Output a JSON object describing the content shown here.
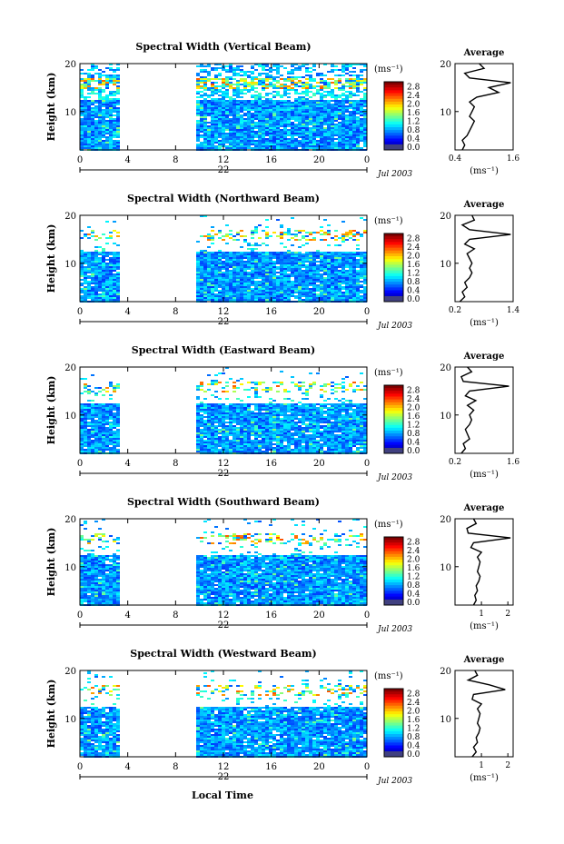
{
  "figure": {
    "bottom_label": "Local Time",
    "colorbar_unit": "(ms⁻¹)",
    "average_title": "Average",
    "date_text": "Jul 2003",
    "day_label": "22",
    "height_axis_label": "Height (km)",
    "average_unit": "(ms⁻¹)",
    "colors": {
      "jet": [
        "#00008f",
        "#0000ff",
        "#0080ff",
        "#00ffff",
        "#80ff80",
        "#ffff00",
        "#ff8000",
        "#ff0000",
        "#800000"
      ],
      "colorbar_bottom": "#404080"
    }
  },
  "chart_data": [
    {
      "type": "heatmap",
      "title": "Spectral Width (Vertical Beam)",
      "ylabel": "Height (km)",
      "x_ticks": [
        "0",
        "4",
        "8",
        "12",
        "16",
        "20",
        "0"
      ],
      "y_ticks": [
        "20",
        "10"
      ],
      "xlim_hours": [
        0,
        24
      ],
      "ylim_km": [
        2,
        20
      ],
      "data_gap_hours": [
        3.2,
        9.6
      ],
      "colorbar_ticks": [
        "2.8",
        "2.4",
        "2.0",
        "1.6",
        "1.2",
        "0.8",
        "0.4",
        "0.0"
      ],
      "colorbar_range": [
        0,
        3
      ],
      "average": {
        "title": "Average",
        "xlabel": "(ms⁻¹)",
        "x_ticks": [
          "0.4",
          "1.6"
        ],
        "xlim": [
          0.4,
          1.6
        ],
        "profile_height_km": [
          2,
          3,
          4,
          5,
          6,
          7,
          8,
          9,
          10,
          11,
          12,
          13,
          14,
          15,
          16,
          17,
          18,
          19,
          20
        ],
        "profile_width": [
          0.55,
          0.6,
          0.55,
          0.65,
          0.7,
          0.75,
          0.8,
          0.7,
          0.75,
          0.8,
          0.7,
          0.85,
          1.3,
          1.1,
          1.55,
          0.7,
          0.6,
          1.0,
          0.9
        ]
      }
    },
    {
      "type": "heatmap",
      "title": "Spectral Width (Northward Beam)",
      "ylabel": "Height (km)",
      "x_ticks": [
        "0",
        "4",
        "8",
        "12",
        "16",
        "20",
        "0"
      ],
      "y_ticks": [
        "20",
        "10"
      ],
      "xlim_hours": [
        0,
        24
      ],
      "ylim_km": [
        2,
        20
      ],
      "data_gap_hours": [
        3.2,
        9.6
      ],
      "colorbar_ticks": [
        "2.8",
        "2.4",
        "2.0",
        "1.6",
        "1.2",
        "0.8",
        "0.4",
        "0.0"
      ],
      "colorbar_range": [
        0,
        3
      ],
      "average": {
        "title": "Average",
        "xlabel": "(ms⁻¹)",
        "x_ticks": [
          "0.2",
          "1.4"
        ],
        "xlim": [
          0.2,
          1.4
        ],
        "profile_height_km": [
          2,
          3,
          4,
          5,
          6,
          7,
          8,
          9,
          10,
          11,
          12,
          13,
          14,
          15,
          16,
          17,
          18,
          19,
          20
        ],
        "profile_width": [
          0.3,
          0.4,
          0.35,
          0.45,
          0.4,
          0.5,
          0.55,
          0.5,
          0.55,
          0.5,
          0.45,
          0.6,
          0.4,
          0.5,
          1.35,
          0.5,
          0.35,
          0.6,
          0.55
        ]
      }
    },
    {
      "type": "heatmap",
      "title": "Spectral Width (Eastward Beam)",
      "ylabel": "Height (km)",
      "x_ticks": [
        "0",
        "4",
        "8",
        "12",
        "16",
        "20",
        "0"
      ],
      "y_ticks": [
        "20",
        "10"
      ],
      "xlim_hours": [
        0,
        24
      ],
      "ylim_km": [
        2,
        20
      ],
      "data_gap_hours": [
        3.2,
        9.6
      ],
      "colorbar_ticks": [
        "2.8",
        "2.4",
        "2.0",
        "1.6",
        "1.2",
        "0.8",
        "0.4",
        "0.0"
      ],
      "colorbar_range": [
        0,
        3
      ],
      "average": {
        "title": "Average",
        "xlabel": "(ms⁻¹)",
        "x_ticks": [
          "0.2",
          "1.6"
        ],
        "xlim": [
          0.2,
          1.6
        ],
        "profile_height_km": [
          2,
          3,
          4,
          5,
          6,
          7,
          8,
          9,
          10,
          11,
          12,
          13,
          14,
          15,
          16,
          17,
          18,
          19,
          20
        ],
        "profile_width": [
          0.35,
          0.45,
          0.4,
          0.55,
          0.5,
          0.45,
          0.55,
          0.6,
          0.55,
          0.65,
          0.5,
          0.7,
          0.45,
          0.55,
          1.5,
          0.4,
          0.35,
          0.6,
          0.5
        ]
      }
    },
    {
      "type": "heatmap",
      "title": "Spectral Width (Southward Beam)",
      "ylabel": "Height (km)",
      "x_ticks": [
        "0",
        "4",
        "8",
        "12",
        "16",
        "20",
        "0"
      ],
      "y_ticks": [
        "20",
        "10"
      ],
      "xlim_hours": [
        0,
        24
      ],
      "ylim_km": [
        2,
        20
      ],
      "data_gap_hours": [
        3.2,
        9.6
      ],
      "colorbar_ticks": [
        "2.8",
        "2.4",
        "2.0",
        "1.6",
        "1.2",
        "0.8",
        "0.4",
        "0.0"
      ],
      "colorbar_range": [
        0,
        3
      ],
      "average": {
        "title": "Average",
        "xlabel": "(ms⁻¹)",
        "x_ticks": [
          "1",
          "2"
        ],
        "xlim": [
          0,
          2.2
        ],
        "profile_height_km": [
          2,
          3,
          4,
          5,
          6,
          7,
          8,
          9,
          10,
          11,
          12,
          13,
          14,
          15,
          16,
          17,
          18,
          19,
          20
        ],
        "profile_width": [
          0.7,
          0.8,
          0.75,
          0.85,
          0.8,
          0.9,
          0.95,
          0.85,
          0.9,
          0.95,
          0.85,
          1.0,
          0.6,
          0.7,
          2.1,
          0.5,
          0.45,
          0.8,
          0.7
        ]
      }
    },
    {
      "type": "heatmap",
      "title": "Spectral Width (Westward Beam)",
      "ylabel": "Height (km)",
      "x_ticks": [
        "0",
        "4",
        "8",
        "12",
        "16",
        "20",
        "0"
      ],
      "y_ticks": [
        "20",
        "10"
      ],
      "xlim_hours": [
        0,
        24
      ],
      "ylim_km": [
        2,
        20
      ],
      "data_gap_hours": [
        3.2,
        9.6
      ],
      "colorbar_ticks": [
        "2.8",
        "2.4",
        "2.0",
        "1.6",
        "1.2",
        "0.8",
        "0.4",
        "0.0"
      ],
      "colorbar_range": [
        0,
        3
      ],
      "average": {
        "title": "Average",
        "xlabel": "(ms⁻¹)",
        "x_ticks": [
          "1",
          "2"
        ],
        "xlim": [
          0,
          2.2
        ],
        "profile_height_km": [
          2,
          3,
          4,
          5,
          6,
          7,
          8,
          9,
          10,
          11,
          12,
          13,
          14,
          15,
          16,
          17,
          18,
          19,
          20
        ],
        "profile_width": [
          0.65,
          0.8,
          0.7,
          0.85,
          0.8,
          0.9,
          0.95,
          0.85,
          0.9,
          0.95,
          0.85,
          1.0,
          0.65,
          0.7,
          1.9,
          1.3,
          0.5,
          0.85,
          0.75
        ]
      }
    }
  ]
}
